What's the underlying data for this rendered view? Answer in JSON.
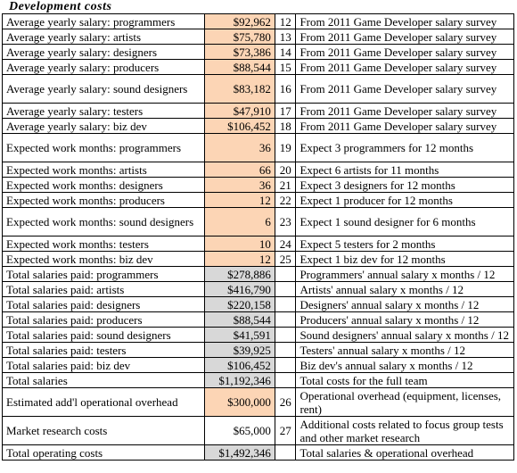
{
  "title": "Development costs",
  "rows": [
    {
      "label": "Average yearly salary: programmers",
      "value": "$92,962",
      "num": "12",
      "note": "From 2011 Game Developer salary survey",
      "bg": "orange"
    },
    {
      "label": "Average yearly salary: artists",
      "value": "$75,780",
      "num": "13",
      "note": "From 2011 Game Developer salary survey",
      "bg": "orange"
    },
    {
      "label": "Average yearly salary: designers",
      "value": "$73,386",
      "num": "14",
      "note": "From 2011 Game Developer salary survey",
      "bg": "orange"
    },
    {
      "label": "Average yearly salary: producers",
      "value": "$88,544",
      "num": "15",
      "note": "From 2011 Game Developer salary survey",
      "bg": "orange"
    },
    {
      "label": "Average yearly salary: sound designers",
      "value": "$83,182",
      "num": "16",
      "note": "From 2011 Game Developer salary survey",
      "bg": "orange"
    },
    {
      "label": "Average yearly salary: testers",
      "value": "$47,910",
      "num": "17",
      "note": "From 2011 Game Developer salary survey",
      "bg": "orange"
    },
    {
      "label": "Average yearly salary: biz dev",
      "value": "$106,452",
      "num": "18",
      "note": "From 2011 Game Developer salary survey",
      "bg": "orange"
    },
    {
      "label": "Expected work months: programmers",
      "value": "36",
      "num": "19",
      "note": "Expect 3 programmers for 12 months",
      "bg": "orange"
    },
    {
      "label": "Expected work months: artists",
      "value": "66",
      "num": "20",
      "note": "Expect 6 artists for 11 months",
      "bg": "orange"
    },
    {
      "label": "Expected work months: designers",
      "value": "36",
      "num": "21",
      "note": "Expect 3 designers for 12 months",
      "bg": "orange"
    },
    {
      "label": "Expected work months: producers",
      "value": "12",
      "num": "22",
      "note": "Expect 1 producer for 12 months",
      "bg": "orange"
    },
    {
      "label": "Expected work months: sound designers",
      "value": "6",
      "num": "23",
      "note": "Expect 1 sound designer for 6 months",
      "bg": "orange"
    },
    {
      "label": "Expected work months: testers",
      "value": "10",
      "num": "24",
      "note": "Expect 5 testers for 2 months",
      "bg": "orange"
    },
    {
      "label": "Expected work months: biz dev",
      "value": "12",
      "num": "25",
      "note": "Expect 1 biz dev for 12 months",
      "bg": "orange"
    },
    {
      "label": "Total salaries paid: programmers",
      "value": "$278,886",
      "num": "",
      "note": "Programmers' annual salary x months / 12",
      "bg": "gray"
    },
    {
      "label": "Total salaries paid: artists",
      "value": "$416,790",
      "num": "",
      "note": "Artists' annual salary x months / 12",
      "bg": "gray"
    },
    {
      "label": "Total salaries paid: designers",
      "value": "$220,158",
      "num": "",
      "note": "Designers' annual salary x months / 12",
      "bg": "gray"
    },
    {
      "label": "Total salaries paid: producers",
      "value": "$88,544",
      "num": "",
      "note": "Producers' annual salary x months / 12",
      "bg": "gray"
    },
    {
      "label": "Total salaries paid: sound designers",
      "value": "$41,591",
      "num": "",
      "note": "Sound designers' annual salary x months / 12",
      "bg": "gray"
    },
    {
      "label": "Total salaries paid: testers",
      "value": "$39,925",
      "num": "",
      "note": "Testers' annual salary x months / 12",
      "bg": "gray"
    },
    {
      "label": "Total salaries paid: biz dev",
      "value": "$106,452",
      "num": "",
      "note": "Biz dev's annual salary x months / 12",
      "bg": "gray"
    },
    {
      "label": "Total salaries",
      "value": "$1,192,346",
      "num": "",
      "note": "Total costs for the full team",
      "bg": "gray"
    },
    {
      "label": "Estimated add'l operational overhead",
      "value": "$300,000",
      "num": "26",
      "note": "Operational overhead (equipment, licenses, rent)",
      "bg": "orange"
    },
    {
      "label": "Market research costs",
      "value": "$65,000",
      "num": "27",
      "note": "Additional costs related to focus group tests and other market research",
      "bg": "plain"
    },
    {
      "label": "Total operating costs",
      "value": "$1,492,346",
      "num": "",
      "note": "Total salaries & operational overhead",
      "bg": "gray"
    }
  ]
}
